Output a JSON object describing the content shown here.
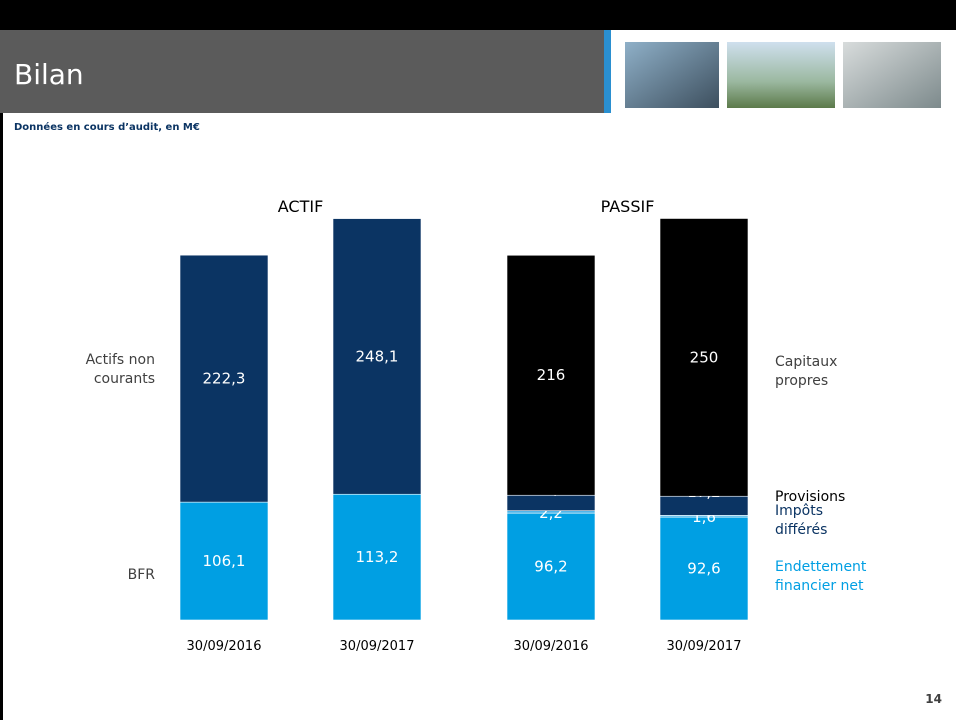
{
  "header": {
    "title": "Bilan",
    "subtitle": "Données en cours d’audit, en M€",
    "page_number": "14"
  },
  "chart_data": [
    {
      "type": "bar",
      "stacked": true,
      "title": "ACTIF",
      "categories": [
        "30/09/2016",
        "30/09/2017"
      ],
      "series": [
        {
          "name": "BFR",
          "color": "#009fe3",
          "label_color": "#404040",
          "values": [
            106.1,
            113.2
          ],
          "value_labels": [
            "106,1",
            "113,2"
          ]
        },
        {
          "name": "Actifs non courants",
          "color": "#0b3463",
          "label_color": "#404040",
          "values": [
            222.3,
            248.1
          ],
          "value_labels": [
            "222,3",
            "248,1"
          ]
        }
      ]
    },
    {
      "type": "bar",
      "stacked": true,
      "title": "PASSIF",
      "categories": [
        "30/09/2016",
        "30/09/2017"
      ],
      "series": [
        {
          "name": "Endettement financier net",
          "color": "#009fe3",
          "label_color": "#009fe3",
          "values": [
            96.2,
            92.6
          ],
          "value_labels": [
            "96,2",
            "92,6"
          ]
        },
        {
          "name": "Impôts différés",
          "color": "#4fb6ea",
          "label_color": "#0b3463",
          "values": [
            2.2,
            1.6
          ],
          "value_labels": [
            "2,2",
            "1,6"
          ]
        },
        {
          "name": "Provisions",
          "color": "#0b3463",
          "label_color": "#000000",
          "values": [
            13.9,
            17.2
          ],
          "value_labels": [
            "13,9",
            "17,2"
          ]
        },
        {
          "name": "Capitaux propres",
          "color": "#000000",
          "label_color": "#404040",
          "values": [
            216,
            250
          ],
          "value_labels": [
            "216",
            "250"
          ]
        }
      ]
    }
  ]
}
